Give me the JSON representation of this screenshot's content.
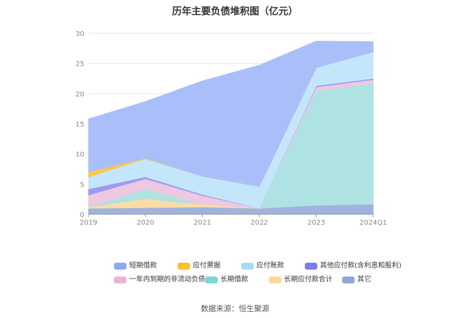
{
  "title": "历年主要负债堆积图（亿元）",
  "source": "数据来源：恒生聚源",
  "chart_data": {
    "type": "area",
    "stacked": true,
    "title": "历年主要负债堆积图（亿元）",
    "categories": [
      "2019",
      "2020",
      "2021",
      "2022",
      "2023",
      "2024Q1"
    ],
    "ylim": [
      0,
      30
    ],
    "yticks": [
      0,
      5,
      10,
      15,
      20,
      25,
      30
    ],
    "grid": true,
    "legend_position": "bottom",
    "series": [
      {
        "name": "其它",
        "color": "#9fb3dd",
        "values": [
          1.0,
          1.1,
          1.2,
          1.0,
          1.5,
          1.7
        ]
      },
      {
        "name": "长期应付款合计",
        "color": "#fbdca5",
        "values": [
          0.2,
          1.5,
          0.4,
          0.0,
          0.0,
          0.0
        ]
      },
      {
        "name": "长期借款",
        "color": "#aee2e3",
        "values": [
          0.0,
          1.6,
          0.0,
          0.0,
          19.0,
          20.0
        ]
      },
      {
        "name": "一年内到期的非流动负债",
        "color": "#eec8e0",
        "values": [
          2.0,
          1.7,
          1.5,
          0.0,
          0.6,
          0.6
        ]
      },
      {
        "name": "其他应付款(含利息和股利)",
        "color": "#9b9cef",
        "values": [
          1.0,
          0.3,
          0.2,
          0.0,
          0.2,
          0.2
        ]
      },
      {
        "name": "应付账款",
        "color": "#c3e6fb",
        "values": [
          2.0,
          3.0,
          3.0,
          3.6,
          3.0,
          4.4
        ]
      },
      {
        "name": "应付票据",
        "color": "#fbc94a",
        "values": [
          0.8,
          0.1,
          0.0,
          0.0,
          0.0,
          0.0
        ]
      },
      {
        "name": "短期借款",
        "color": "#aabffa",
        "values": [
          8.8,
          9.4,
          15.8,
          20.1,
          4.4,
          1.7
        ]
      }
    ],
    "legend_order": [
      "短期借款",
      "应付票据",
      "应付账款",
      "其他应付款(含利息和股利)",
      "一年内到期的非流动负债",
      "长期借款",
      "长期应付款合计",
      "其它"
    ],
    "legend_colors": {
      "短期借款": "#8faaf5",
      "应付票据": "#fbc02d",
      "应付账款": "#a6dcfa",
      "其他应付款(含利息和股利)": "#7b7cf0",
      "一年内到期的非流动负债": "#e9b4d6",
      "长期借款": "#7fd6d6",
      "长期应付款合计": "#fcd899",
      "其它": "#8ea6d9"
    }
  }
}
